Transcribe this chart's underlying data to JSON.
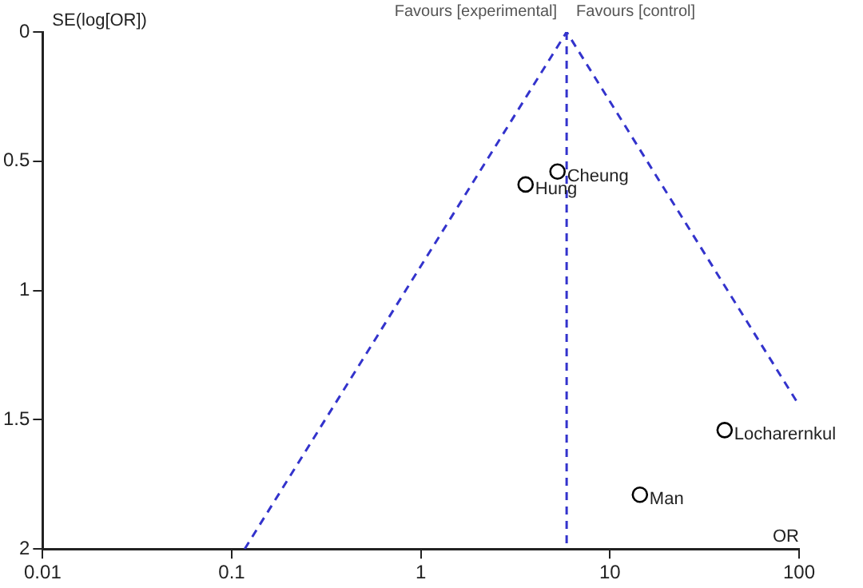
{
  "chart_data": {
    "type": "scatter",
    "xlabel": "OR",
    "ylabel": "SE(log[OR])",
    "log": "x",
    "xlim": [
      0.01,
      100
    ],
    "xticks": [
      0.01,
      0.1,
      1,
      10,
      100
    ],
    "ylim": [
      2,
      0
    ],
    "yticks": [
      0,
      0.5,
      1,
      1.5,
      2
    ],
    "grid": false,
    "legend": false,
    "marker": "circle",
    "series": [
      {
        "type": "scatter",
        "color": "#000000",
        "x": [
          5.28,
          3.58,
          40.4,
          14.4
        ],
        "values": [
          0.54,
          0.59,
          1.54,
          1.79
        ]
      },
      {
        "type": "line",
        "color": "#3333cc",
        "line_style": "dashed",
        "marker": "none",
        "x": [
          0.117,
          5.9,
          100
        ],
        "values": [
          2,
          0,
          1.444
        ]
      }
    ],
    "ref_lines": [
      {
        "axis": "x",
        "value": 5.9,
        "color": "#3333cc",
        "line_style": "dashed"
      }
    ],
    "annotations": [
      "Favours [experimental]",
      "Favours [control]",
      {
        "text": "Cheung",
        "x": 5.28,
        "y": 0.54
      },
      {
        "text": "Hung",
        "x": 3.58,
        "y": 0.59
      },
      {
        "text": "Locharernkul",
        "x": 40.4,
        "y": 1.54
      },
      {
        "text": "Man",
        "x": 14.4,
        "y": 1.79
      }
    ]
  }
}
